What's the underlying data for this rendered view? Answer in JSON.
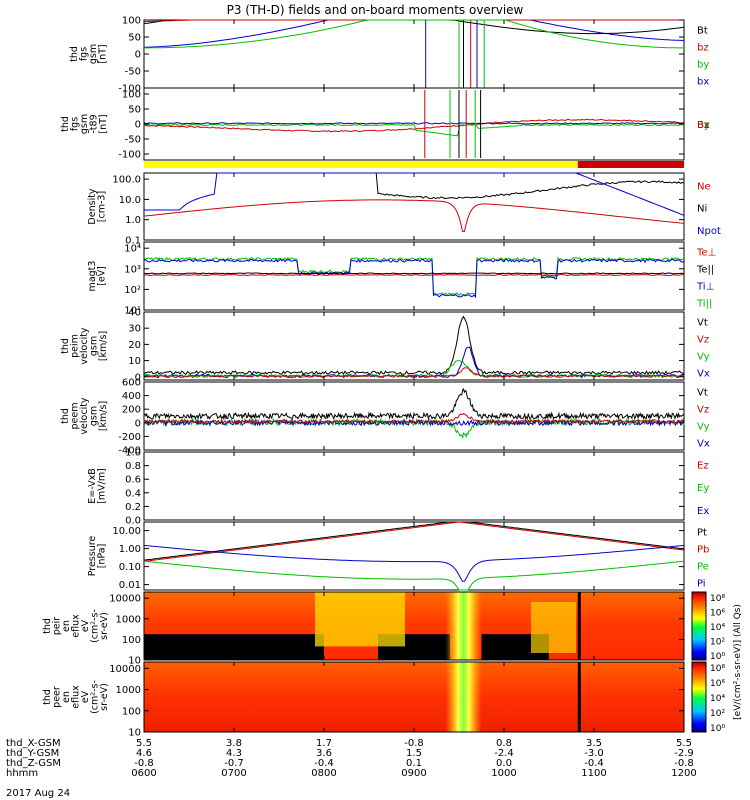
{
  "title": "P3 (TH-D) fields and on-board moments overview",
  "date": "2017 Aug 24",
  "colors": {
    "black": "#000000",
    "red": "#d00000",
    "green": "#00c000",
    "blue": "#0000d0",
    "yellow": "#ffff00",
    "axis": "#000000"
  },
  "chart_data": [
    {
      "type": "line",
      "ylabel_lines": [
        "thd",
        "fgs",
        "gsm",
        "[nT]"
      ],
      "ylim": [
        -100,
        100
      ],
      "ticks": [
        "100",
        "50",
        "0",
        "-50",
        "-100"
      ],
      "series": [
        {
          "name": "Bt",
          "color": "black"
        },
        {
          "name": "bz",
          "color": "red"
        },
        {
          "name": "by",
          "color": "green"
        },
        {
          "name": "bx",
          "color": "blue"
        }
      ]
    },
    {
      "type": "line",
      "ylabel_lines": [
        "thd",
        "fgs",
        "gsm",
        "-t89",
        "[nT]"
      ],
      "ylim": [
        -120,
        120
      ],
      "ticks": [
        "100",
        "50",
        "0",
        "-50",
        "-100"
      ],
      "series": [
        {
          "name": "Bx",
          "color": "blue"
        },
        {
          "name": "By",
          "color": "green"
        },
        {
          "name": "Bz",
          "color": "red"
        }
      ]
    },
    {
      "type": "bar",
      "name": "region-bar",
      "segments": [
        {
          "from": 6.0,
          "to": 10.82,
          "color": "yellow"
        },
        {
          "from": 10.82,
          "to": 12.0,
          "color": "red"
        }
      ]
    },
    {
      "type": "line",
      "scale": "log",
      "ylabel_lines": [
        "Density",
        "[cm-3]"
      ],
      "ylim": [
        0.1,
        200
      ],
      "ticks": [
        "100.0",
        "10.0",
        "1.0",
        "0.1"
      ],
      "series": [
        {
          "name": "Ne",
          "color": "red"
        },
        {
          "name": "Ni",
          "color": "black"
        },
        {
          "name": "Npot",
          "color": "blue"
        }
      ]
    },
    {
      "type": "line",
      "scale": "log",
      "ylabel_lines": [
        "magt3",
        "[eV]"
      ],
      "ylim": [
        10,
        20000
      ],
      "ticks": [
        "10⁴",
        "10³",
        "10²",
        "10¹"
      ],
      "series": [
        {
          "name": "Te⊥",
          "color": "red"
        },
        {
          "name": "Te||",
          "color": "black"
        },
        {
          "name": "Ti⊥",
          "color": "blue"
        },
        {
          "name": "Ti||",
          "color": "green"
        }
      ]
    },
    {
      "type": "line",
      "ylabel_lines": [
        "thd",
        "peim",
        "velocity",
        "gsm",
        "[km/s]"
      ],
      "ylim": [
        -2,
        40
      ],
      "ticks": [
        "40",
        "30",
        "20",
        "10",
        "0"
      ],
      "series": [
        {
          "name": "Vt",
          "color": "black"
        },
        {
          "name": "Vz",
          "color": "red"
        },
        {
          "name": "Vy",
          "color": "green"
        },
        {
          "name": "Vx",
          "color": "blue"
        }
      ]
    },
    {
      "type": "line",
      "ylabel_lines": [
        "thd",
        "peem",
        "velocity",
        "gsm",
        "[km/s]"
      ],
      "ylim": [
        -400,
        600
      ],
      "ticks": [
        "600",
        "400",
        "200",
        "0",
        "-200",
        "-400"
      ],
      "series": [
        {
          "name": "Vt",
          "color": "black"
        },
        {
          "name": "Vz",
          "color": "red"
        },
        {
          "name": "Vy",
          "color": "green"
        },
        {
          "name": "Vx",
          "color": "blue"
        }
      ]
    },
    {
      "type": "line",
      "ylabel_lines": [
        "E=-VxB",
        "[mV/m]"
      ],
      "ylim": [
        0,
        1
      ],
      "ticks": [
        "1.0",
        "0.8",
        "0.6",
        "0.4",
        "0.2",
        "0.0"
      ],
      "series": [
        {
          "name": "Ez",
          "color": "red"
        },
        {
          "name": "Ey",
          "color": "green"
        },
        {
          "name": "Ex",
          "color": "blue"
        }
      ]
    },
    {
      "type": "line",
      "scale": "log",
      "ylabel_lines": [
        "Pressure",
        "[nPa]"
      ],
      "ylim": [
        0.005,
        30
      ],
      "ticks": [
        "10.00",
        "1.00",
        "0.10",
        "0.01"
      ],
      "series": [
        {
          "name": "Pt",
          "color": "black"
        },
        {
          "name": "Pb",
          "color": "red"
        },
        {
          "name": "Pe",
          "color": "green"
        },
        {
          "name": "Pi",
          "color": "blue"
        }
      ]
    },
    {
      "type": "heatmap",
      "ylabel_lines": [
        "thd",
        "peir",
        "en",
        "eflux",
        "eV",
        "(cm²-s-",
        "sr-eV)"
      ],
      "yscale": "log",
      "ylim": [
        10,
        20000
      ],
      "ticks": [
        "10000",
        "1000",
        "100",
        "10"
      ]
    },
    {
      "type": "heatmap",
      "ylabel_lines": [
        "thd",
        "peer",
        "en",
        "eflux",
        "eV",
        "(cm²-s-",
        "sr-eV)"
      ],
      "yscale": "log",
      "ylim": [
        10,
        20000
      ],
      "ticks": [
        "10000",
        "1000",
        "100",
        "10"
      ]
    }
  ],
  "colorbar": {
    "label": "[eV/(cm²-s-sr-eV)] (All Qs)",
    "ticks_top": [
      "10⁸",
      "10⁶",
      "10⁴",
      "10²",
      "10⁰"
    ],
    "ticks_bottom": [
      "10⁸",
      "10⁶",
      "10⁴",
      "10²",
      "10⁰"
    ]
  },
  "time_axis": {
    "rows": [
      {
        "label": "thd_X-GSM",
        "values": [
          "5.5",
          "3.8",
          "1.7",
          "-0.8",
          "0.8",
          "3.5",
          "5.5"
        ]
      },
      {
        "label": "thd_Y-GSM",
        "values": [
          "4.6",
          "4.3",
          "3.6",
          "1.5",
          "-2.4",
          "-3.0",
          "-2.9"
        ]
      },
      {
        "label": "thd_Z-GSM",
        "values": [
          "-0.8",
          "-0.7",
          "-0.4",
          "0.1",
          "0.0",
          "-0.4",
          "-0.8"
        ]
      },
      {
        "label": "hhmm",
        "values": [
          "0600",
          "0700",
          "0800",
          "0900",
          "1000",
          "1100",
          "1200"
        ]
      }
    ]
  }
}
